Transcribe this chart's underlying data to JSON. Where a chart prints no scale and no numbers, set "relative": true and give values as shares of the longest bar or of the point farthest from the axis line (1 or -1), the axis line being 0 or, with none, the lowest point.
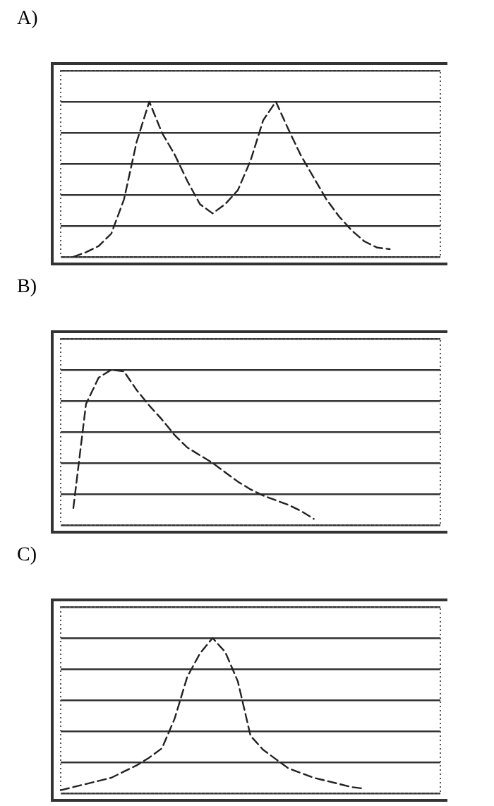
{
  "chart_data": [
    {
      "type": "line",
      "title": "A)",
      "relative": true,
      "grid": "y",
      "line_style": "dashed",
      "marker": "none",
      "color": "#222222",
      "categories": [
        null,
        null,
        null,
        null,
        null,
        null,
        null,
        null,
        null,
        null,
        null,
        null,
        null,
        null,
        null,
        null,
        null,
        null,
        null,
        null,
        null,
        null,
        null,
        null,
        null,
        null,
        null,
        null,
        null,
        null,
        null
      ],
      "values": [
        null,
        0,
        0.03,
        0.07,
        0.15,
        0.37,
        0.74,
        1,
        0.8,
        0.66,
        0.49,
        0.34,
        0.28,
        0.34,
        0.43,
        0.62,
        0.88,
        1,
        0.82,
        0.65,
        0.51,
        0.37,
        0.26,
        0.17,
        0.1,
        0.06,
        0.05,
        null,
        null,
        null,
        null
      ]
    },
    {
      "type": "line",
      "title": "B)",
      "relative": true,
      "grid": "y",
      "line_style": "dashed",
      "marker": "none",
      "color": "#222222",
      "categories": [
        null,
        null,
        null,
        null,
        null,
        null,
        null,
        null,
        null,
        null,
        null,
        null,
        null,
        null,
        null,
        null,
        null,
        null,
        null,
        null,
        null,
        null,
        null,
        null,
        null,
        null,
        null,
        null,
        null,
        null,
        null
      ],
      "values": [
        null,
        0.11,
        0.78,
        0.95,
        1,
        0.99,
        0.87,
        0.77,
        0.68,
        0.58,
        0.5,
        0.45,
        0.4,
        0.34,
        0.28,
        0.23,
        0.19,
        0.16,
        0.13,
        0.09,
        0.04,
        null,
        null,
        null,
        null,
        null,
        null,
        null,
        null,
        null,
        null
      ]
    },
    {
      "type": "line",
      "title": "C)",
      "relative": true,
      "grid": "y",
      "line_style": "dashed",
      "marker": "none",
      "color": "#222222",
      "categories": [
        null,
        null,
        null,
        null,
        null,
        null,
        null,
        null,
        null,
        null,
        null,
        null,
        null,
        null,
        null,
        null,
        null,
        null,
        null,
        null,
        null,
        null,
        null,
        null,
        null,
        null,
        null,
        null,
        null,
        null,
        null
      ],
      "values": [
        0.02,
        0.04,
        0.06,
        0.08,
        0.1,
        0.14,
        0.18,
        0.23,
        0.29,
        0.48,
        0.75,
        0.9,
        1,
        0.91,
        0.72,
        0.37,
        0.28,
        0.22,
        0.16,
        0.13,
        0.1,
        0.08,
        0.06,
        0.04,
        0.03,
        null,
        null,
        null,
        null,
        null,
        null
      ]
    }
  ]
}
